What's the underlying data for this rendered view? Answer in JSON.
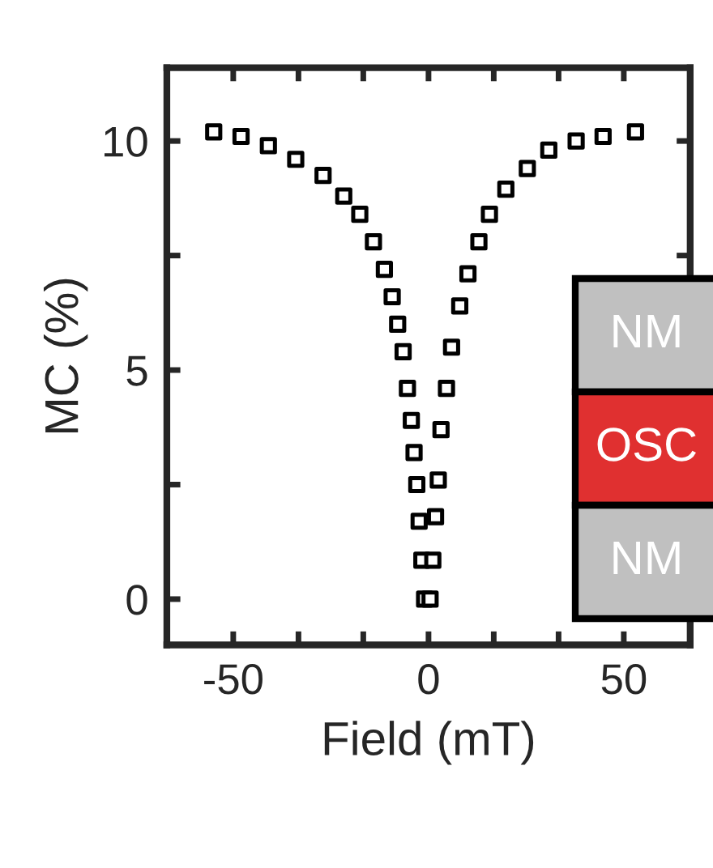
{
  "chart_data": {
    "type": "scatter",
    "xlabel": "Field (mT)",
    "ylabel": "MC (%)",
    "x": [
      -55,
      -48,
      -41,
      -34,
      -27,
      -21.7,
      -17.6,
      -14.1,
      -11.3,
      -9.3,
      -7.9,
      -6.5,
      -5.4,
      -4.4,
      -3.7,
      -3.0,
      -2.4,
      -1.7,
      -1.0,
      0.4,
      1.1,
      1.8,
      2.5,
      3.2,
      4.6,
      5.9,
      8.0,
      10.1,
      12.9,
      15.6,
      19.8,
      25.3,
      30.8,
      37.8,
      44.7,
      53
    ],
    "series": [
      {
        "color": "#000000",
        "values": [
          10.2,
          10.1,
          9.9,
          9.6,
          9.25,
          8.8,
          8.4,
          7.8,
          7.2,
          6.6,
          6.0,
          5.4,
          4.6,
          3.9,
          3.2,
          2.5,
          1.7,
          0.85,
          0.0,
          0.0,
          0.85,
          1.8,
          2.6,
          3.7,
          4.6,
          5.5,
          6.4,
          7.1,
          7.8,
          8.4,
          8.95,
          9.4,
          9.8,
          10.0,
          10.1,
          10.2
        ]
      }
    ],
    "marker": "square",
    "grid": false,
    "legend": false,
    "xlim": [
      -67,
      67
    ],
    "xticks": [
      -50,
      {
        "value": -33.3,
        "label": null
      },
      {
        "value": -16.7,
        "label": null
      },
      0,
      {
        "value": 16.7,
        "label": null
      },
      {
        "value": 33.3,
        "label": null
      },
      50
    ],
    "ylim": [
      -1,
      11.6
    ],
    "yticks": [
      0,
      {
        "value": 2.5,
        "label": null
      },
      5,
      {
        "value": 7.5,
        "label": null
      },
      10
    ],
    "annotations": [
      "NM",
      "OSC",
      "NM"
    ]
  }
}
